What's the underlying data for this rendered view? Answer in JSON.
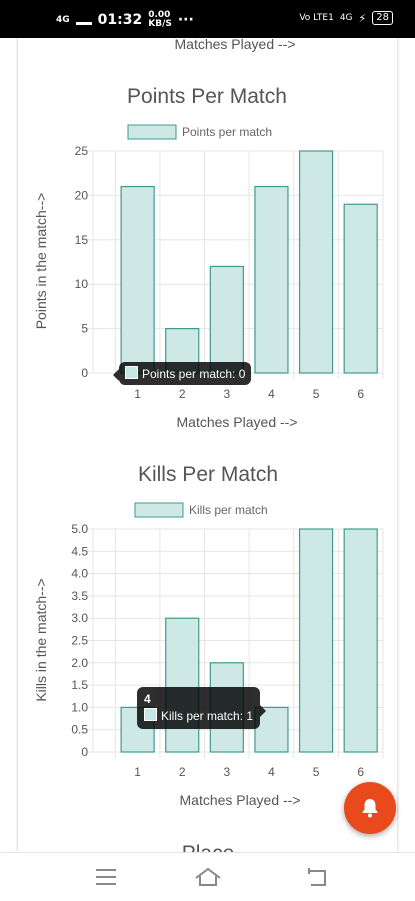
{
  "status_bar": {
    "time": "01:32",
    "network_left": "4G",
    "network_right": "4G",
    "speed": "0.00",
    "speed_unit": "KB/S",
    "volte": "Vo LTE1",
    "battery": "28"
  },
  "header_partial": {
    "xlabel": "Matches Played -->"
  },
  "charts": [
    {
      "title": "Points Per Match",
      "legend": "Points per match",
      "ylabel": "Points in the match-->",
      "xlabel": "Matches Played -->"
    },
    {
      "title": "Kills Per Match",
      "legend": "Kills per match",
      "ylabel": "Kills in the match-->",
      "xlabel": "Matches Played -->"
    }
  ],
  "tooltips": {
    "points": {
      "body": "Points per match: 0"
    },
    "kills": {
      "title": "4",
      "body": "Kills per match: 1"
    }
  },
  "next_section_title": "Place",
  "colors": {
    "bar_fill": "#cde8e5",
    "bar_stroke": "#3f9b8d",
    "grid": "#e6e6e6",
    "text": "#555555",
    "fab": "#e84a1c"
  },
  "icons": {
    "fab": "bell-icon",
    "nav": [
      "menu-icon",
      "home-icon",
      "back-icon"
    ]
  },
  "chart_data": [
    {
      "type": "bar",
      "title": "Points Per Match",
      "categories": [
        "1",
        "2",
        "3",
        "4",
        "5",
        "6"
      ],
      "series": [
        {
          "name": "Points per match",
          "values": [
            21,
            5,
            12,
            21,
            25,
            19
          ]
        }
      ],
      "xlabel": "Matches Played -->",
      "ylabel": "Points in the match-->",
      "ylim": [
        0,
        25
      ],
      "yticks": [
        "0",
        "5",
        "10",
        "15",
        "20",
        "25"
      ],
      "grid": true,
      "legend": "top"
    },
    {
      "type": "bar",
      "title": "Kills Per Match",
      "categories": [
        "1",
        "2",
        "3",
        "4",
        "5",
        "6"
      ],
      "series": [
        {
          "name": "Kills per match",
          "values": [
            1,
            3,
            2,
            1,
            5,
            5
          ]
        }
      ],
      "xlabel": "Matches Played -->",
      "ylabel": "Kills in the match-->",
      "ylim": [
        0,
        5
      ],
      "yticks": [
        "0",
        "0.5",
        "1.0",
        "1.5",
        "2.0",
        "2.5",
        "3.0",
        "3.5",
        "4.0",
        "4.5",
        "5.0"
      ],
      "grid": true,
      "legend": "top"
    }
  ]
}
